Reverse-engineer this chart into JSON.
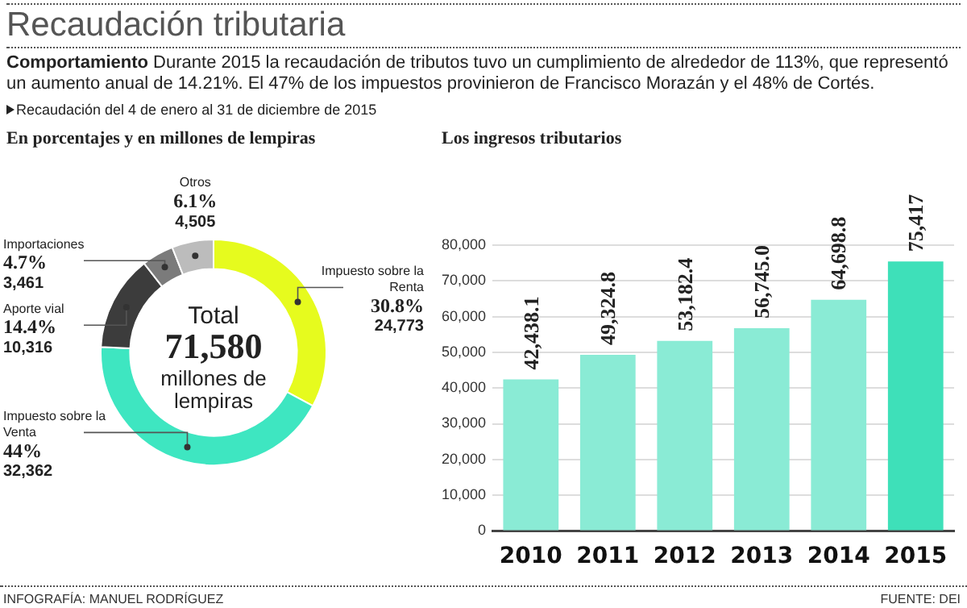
{
  "chart_data": [
    {
      "type": "donut",
      "title": "Recaudación tributaria",
      "subtitle": "Comportamiento Durante 2015 la recaudación de tributos tuvo un cumplimiento de alrededor de 113%, que representó un aumento anual de 14.21%. El 47% de los impuestos provinieron de Francisco Morazán y el 48% de Cortés.",
      "annotations": [
        "Recaudación del 4 de enero al 31 de diciembre de 2015",
        "En porcentajes y en millones de lempiras",
        "Total",
        "71,580",
        "millones de lempiras",
        "INFOGRAFÍA: MANUEL RODRÍGUEZ"
      ],
      "categories": [
        "Impuesto sobre la Renta",
        "Impuesto sobre la Venta",
        "Aporte vial",
        "Importaciones",
        "Otros"
      ],
      "values": [
        24773,
        32362,
        10316,
        3461,
        4505
      ],
      "colors": [
        "#e6fb1e",
        "#3ee6c1",
        "#3c3c3c",
        "#7b7b7b",
        "#bcbcbc"
      ],
      "value_labels": [
        "30.8%\n24,773",
        "44%\n32,362",
        "14.4%\n10,316",
        "4.7%\n3,461",
        "6.1%\n4,505"
      ]
    },
    {
      "type": "bar",
      "title": "Los ingresos tributarios",
      "annotations": [
        "FUENTE: DEI"
      ],
      "categories": [
        "2010",
        "2011",
        "2012",
        "2013",
        "2014",
        "2015"
      ],
      "values": [
        42438.1,
        49324.8,
        53182.4,
        56745.0,
        64698.8,
        75417
      ],
      "colors": [
        "#8aebd5",
        "#8aebd5",
        "#8aebd5",
        "#8aebd5",
        "#8aebd5",
        "#3ee0b9"
      ],
      "value_labels": [
        "42,438.1",
        "49,324.8",
        "53,182.4",
        "56,745.0",
        "64,698.8",
        "75,417"
      ],
      "ylim": [
        0,
        80000
      ],
      "yticks": [
        0,
        {
          "value": 10000,
          "label": "10,000"
        },
        {
          "value": 20000,
          "label": "20,000"
        },
        {
          "value": 30000,
          "label": "30,000"
        },
        {
          "value": 40000,
          "label": "40,000"
        },
        {
          "value": 50000,
          "label": "50,000"
        },
        {
          "value": 60000,
          "label": "60,000"
        },
        {
          "value": 70000,
          "label": "70,000"
        },
        {
          "value": 80000,
          "label": "80,000"
        }
      ],
      "grid": "y",
      "legend": false
    }
  ]
}
